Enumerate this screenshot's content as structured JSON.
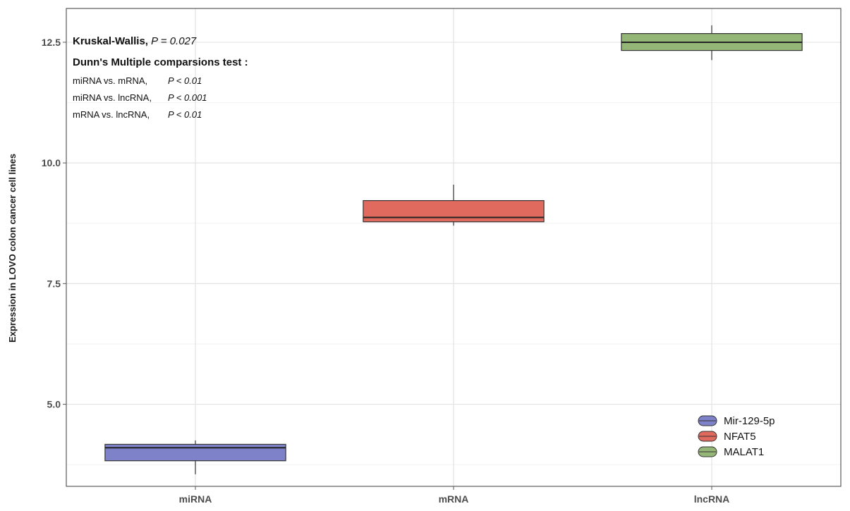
{
  "chart_data": {
    "type": "box",
    "ylabel": "Expression in LOVO colon cancer cell lines",
    "ylim": [
      3.3,
      13.2
    ],
    "yticks": [
      5.0,
      7.5,
      10.0,
      12.5
    ],
    "ytick_labels": [
      "5.0",
      "7.5",
      "10.0",
      "12.5"
    ],
    "categories": [
      "miRNA",
      "mRNA",
      "lncRNA"
    ],
    "grid": true,
    "legend_position": "bottom-right",
    "series": [
      {
        "name": "Mir-129-5p",
        "category": "miRNA",
        "color": "#7e82c8",
        "min": 3.55,
        "q1": 3.83,
        "median": 4.1,
        "q3": 4.17,
        "max": 4.25
      },
      {
        "name": "NFAT5",
        "category": "mRNA",
        "color": "#e06a5e",
        "min": 8.7,
        "q1": 8.78,
        "median": 8.87,
        "q3": 9.22,
        "max": 9.55
      },
      {
        "name": "MALAT1",
        "category": "lncRNA",
        "color": "#94b677",
        "min": 12.13,
        "q1": 12.33,
        "median": 12.5,
        "q3": 12.68,
        "max": 12.85
      }
    ],
    "annotations": {
      "kruskal": {
        "label": "Kruskal-Wallis, ",
        "p": "P = 0.027"
      },
      "dunn_title": "Dunn's Multiple comparsions test :",
      "comparisons": [
        {
          "label": "miRNA vs. mRNA,",
          "p": "P < 0.01"
        },
        {
          "label": "miRNA vs. lncRNA,",
          "p": "P < 0.001"
        },
        {
          "label": "mRNA vs. lncRNA,",
          "p": "P < 0.01"
        }
      ]
    }
  }
}
